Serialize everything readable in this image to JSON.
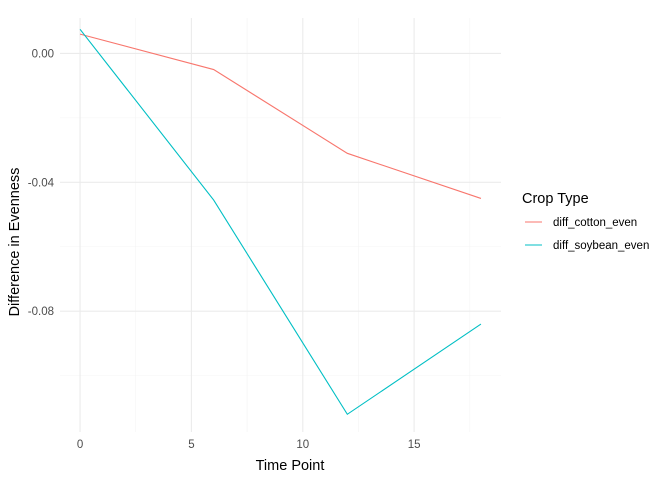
{
  "chart_data": {
    "type": "line",
    "title": "",
    "xlabel": "Time Point",
    "ylabel": "Difference in Evenness",
    "xlim": [
      -0.9,
      18.9
    ],
    "ylim": [
      -0.1175,
      0.011
    ],
    "x_ticks": [
      0,
      5,
      10,
      15
    ],
    "x_tick_labels": [
      "0",
      "5",
      "10",
      "15"
    ],
    "x_minor_ticks": [
      2.5,
      7.5,
      12.5,
      17.5
    ],
    "y_ticks": [
      0.0,
      -0.04,
      -0.08
    ],
    "y_tick_labels": [
      "0.00",
      "-0.04",
      "-0.08"
    ],
    "y_minor_ticks": [
      0.02,
      -0.02,
      -0.06,
      -0.1
    ],
    "grid": true,
    "legend": {
      "title": "Crop Type",
      "position": "right"
    },
    "series": [
      {
        "name": "diff_cotton_even",
        "color": "#F8766D",
        "x": [
          0,
          6,
          12,
          18
        ],
        "y": [
          0.006,
          -0.005,
          -0.031,
          -0.045
        ]
      },
      {
        "name": "diff_soybean_even",
        "color": "#00BFC4",
        "x": [
          0,
          6,
          12,
          18
        ],
        "y": [
          0.0075,
          -0.0455,
          -0.112,
          -0.084
        ]
      }
    ]
  }
}
